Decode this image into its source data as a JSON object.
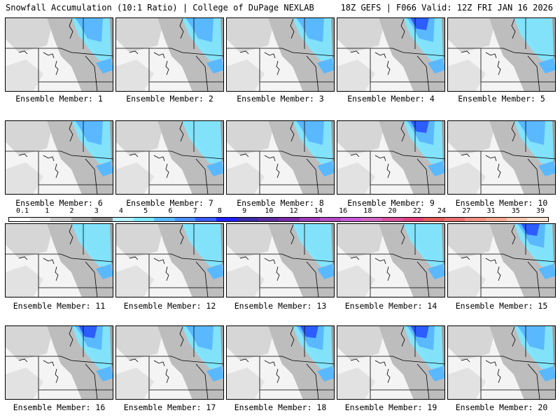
{
  "header": {
    "title": "Snowfall Accumulation (10:1 Ratio) | College of DuPage NEXLAB",
    "run_info": "18Z GEFS | F066 Valid: 12Z FRI JAN 16 2026"
  },
  "legend": {
    "labels": [
      "0.1",
      "1",
      "2",
      "3",
      "4",
      "5",
      "6",
      "7",
      "8",
      "9",
      "10",
      "12",
      "14",
      "16",
      "18",
      "20",
      "22",
      "24",
      "27",
      "31",
      "35",
      "39"
    ],
    "colors": [
      "#ffffff",
      "#e6e6e6",
      "#c8c8c8",
      "#a6a6a6",
      "#8a8a8a",
      "#b4f0ff",
      "#7fe6ff",
      "#5ab8ff",
      "#4b8eff",
      "#3a5cff",
      "#2020ff",
      "#3a2aa8",
      "#5a2aa0",
      "#7a2aa8",
      "#9a3ab8",
      "#b44ac8",
      "#c85ad8",
      "#d066c0",
      "#d8509a",
      "#e0407a",
      "#e05a5a",
      "#e87070",
      "#f09080",
      "#f4a890",
      "#f8c8b0",
      "#fce0d0"
    ]
  },
  "panels": [
    {
      "label": "Ensemble Member: 1",
      "intensity": 2
    },
    {
      "label": "Ensemble Member: 2",
      "intensity": 2
    },
    {
      "label": "Ensemble Member: 3",
      "intensity": 2
    },
    {
      "label": "Ensemble Member: 4",
      "intensity": 3
    },
    {
      "label": "Ensemble Member: 5",
      "intensity": 1
    },
    {
      "label": "Ensemble Member: 6",
      "intensity": 2
    },
    {
      "label": "Ensemble Member: 7",
      "intensity": 1
    },
    {
      "label": "Ensemble Member: 8",
      "intensity": 2
    },
    {
      "label": "Ensemble Member: 9",
      "intensity": 3
    },
    {
      "label": "Ensemble Member: 10",
      "intensity": 2
    },
    {
      "label": "Ensemble Member: 11",
      "intensity": 1
    },
    {
      "label": "Ensemble Member: 12",
      "intensity": 1
    },
    {
      "label": "Ensemble Member: 13",
      "intensity": 1
    },
    {
      "label": "Ensemble Member: 14",
      "intensity": 1
    },
    {
      "label": "Ensemble Member: 15",
      "intensity": 3
    },
    {
      "label": "Ensemble Member: 16",
      "intensity": 3
    },
    {
      "label": "Ensemble Member: 17",
      "intensity": 2
    },
    {
      "label": "Ensemble Member: 18",
      "intensity": 3
    },
    {
      "label": "Ensemble Member: 19",
      "intensity": 3
    },
    {
      "label": "Ensemble Member: 20",
      "intensity": 2
    }
  ]
}
